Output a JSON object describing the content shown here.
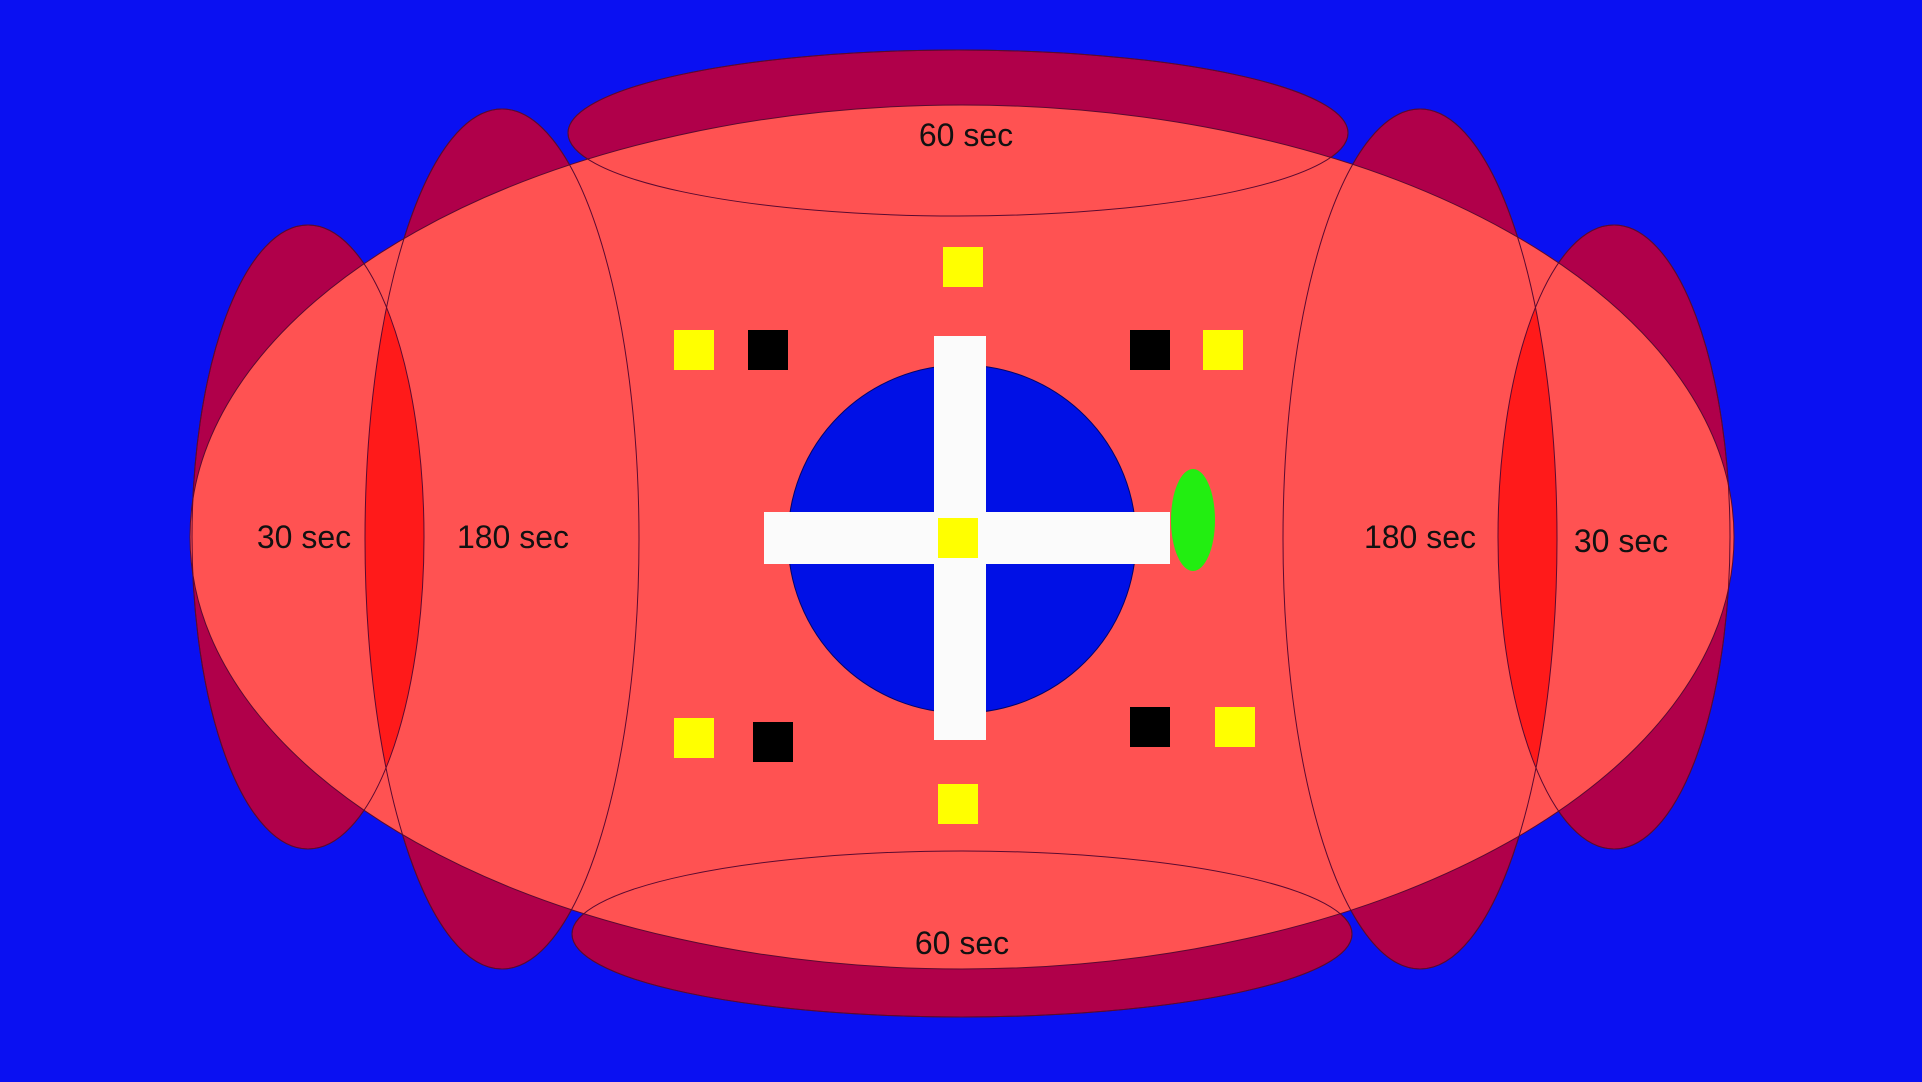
{
  "colors": {
    "background": "#0a10f2",
    "arena": "#ffffff",
    "zone_outer": "#b0004a",
    "zone_inner": "#ff5252",
    "zone_overlap": "#ff1a1a",
    "center_pool": "#0010e6",
    "cross": "#fbfbfb",
    "marker_yellow": "#ffff00",
    "marker_black": "#000000",
    "marker_green": "#22ee11"
  },
  "zones": {
    "top": {
      "label": "60 sec"
    },
    "bottom": {
      "label": "60 sec"
    },
    "left_inner": {
      "label": "180 sec"
    },
    "left_outer": {
      "label": "30 sec"
    },
    "right_inner": {
      "label": "180 sec"
    },
    "right_outer": {
      "label": "30 sec"
    }
  }
}
